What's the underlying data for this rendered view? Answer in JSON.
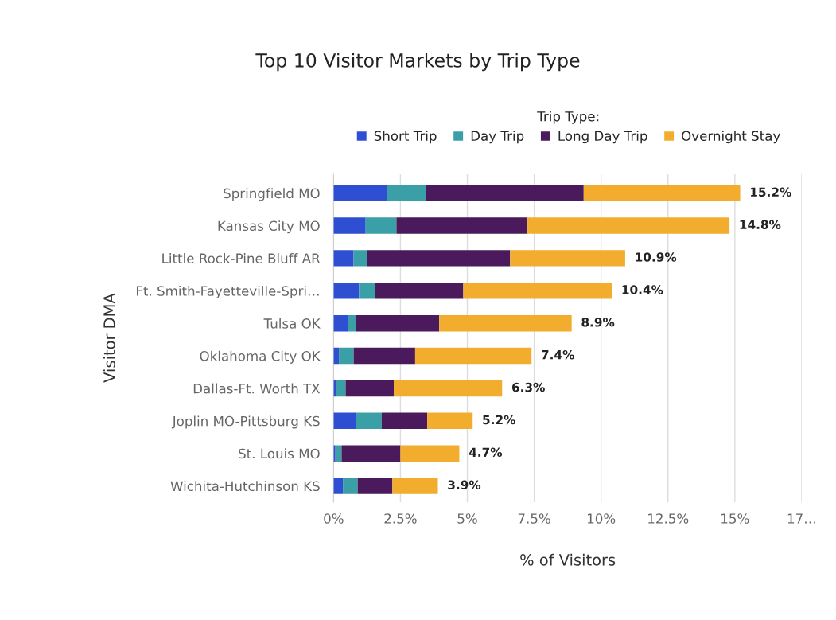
{
  "chart_data": {
    "type": "bar",
    "orientation": "horizontal",
    "stacked": true,
    "title": "Top 10 Visitor Markets by Trip Type",
    "xlabel": "% of Visitors",
    "ylabel": "Visitor DMA",
    "legend_title": "Trip Type:",
    "categories": [
      "Springfield MO",
      "Kansas City MO",
      "Little Rock-Pine Bluff AR",
      "Ft. Smith-Fayetteville-Spri…",
      "Tulsa OK",
      "Oklahoma City OK",
      "Dallas-Ft. Worth TX",
      "Joplin MO-Pittsburg KS",
      "St. Louis MO",
      "Wichita-Hutchinson KS"
    ],
    "series": [
      {
        "name": "Short Trip",
        "color": "#2e4fd1",
        "values": [
          2.0,
          1.2,
          0.75,
          0.95,
          0.55,
          0.2,
          0.1,
          0.85,
          0.07,
          0.35
        ]
      },
      {
        "name": "Day Trip",
        "color": "#3a9fa6",
        "values": [
          1.45,
          1.15,
          0.5,
          0.6,
          0.3,
          0.55,
          0.35,
          0.95,
          0.23,
          0.55
        ]
      },
      {
        "name": "Long Day Trip",
        "color": "#4a1a5c",
        "values": [
          5.9,
          4.9,
          5.35,
          3.3,
          3.1,
          2.3,
          1.8,
          1.7,
          2.2,
          1.3
        ]
      },
      {
        "name": "Overnight Stay",
        "color": "#f2ad2e",
        "values": [
          5.85,
          7.55,
          4.3,
          5.55,
          4.95,
          4.35,
          4.05,
          1.7,
          2.2,
          1.7
        ]
      }
    ],
    "totals": [
      "15.2%",
      "14.8%",
      "10.9%",
      "10.4%",
      "8.9%",
      "7.4%",
      "6.3%",
      "5.2%",
      "4.7%",
      "3.9%"
    ],
    "xlim": [
      0,
      17.5
    ],
    "xticks": [
      {
        "value": 0,
        "label": "0%"
      },
      {
        "value": 2.5,
        "label": "2.5%"
      },
      {
        "value": 5,
        "label": "5%"
      },
      {
        "value": 7.5,
        "label": "7.5%"
      },
      {
        "value": 10,
        "label": "10%"
      },
      {
        "value": 12.5,
        "label": "12.5%"
      },
      {
        "value": 15,
        "label": "15%"
      },
      {
        "value": 17.5,
        "label": "17…"
      }
    ],
    "grid": "x",
    "legend": "top"
  }
}
